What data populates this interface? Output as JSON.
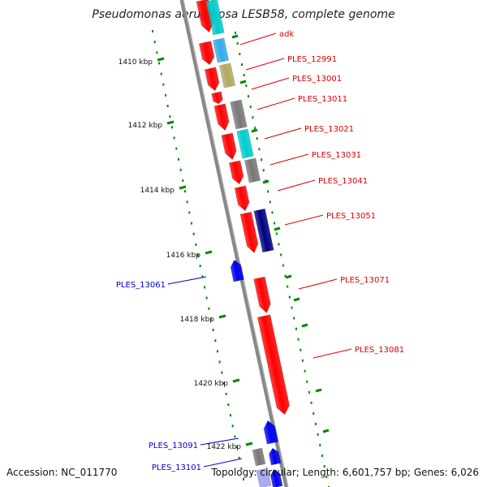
{
  "title": "Pseudomonas aeruginosa LESB58, complete genome",
  "footer": {
    "accession": "Accession: NC_011770",
    "meta": "Topology: circular; Length: 6,601,757 bp; Genes: 6,026"
  },
  "colors": {
    "forward_gene": "#ff0000",
    "reverse_gene_blue": "#0000ee",
    "reverse_gene_navy": "#000080",
    "cyan_feature": "#00cccc",
    "light_blue_feature": "#33aaee",
    "khaki_feature": "#b0a860",
    "gray_feature": "#777777",
    "backbone": "#888888",
    "tick_marks": "#008800"
  },
  "scale_labels": [
    "1410 kbp",
    "1412 kbp",
    "1414 kbp",
    "1416 kbp",
    "1418 kbp",
    "1420 kbp",
    "1422 kbp"
  ],
  "gene_labels_right": [
    "adk",
    "PLES_12991",
    "PLES_13001",
    "PLES_13011",
    "PLES_13021",
    "PLES_13031",
    "PLES_13041",
    "PLES_13051",
    "PLES_13071",
    "PLES_13081"
  ],
  "gene_labels_left": [
    "PLES_13061",
    "PLES_13091",
    "PLES_13101"
  ]
}
